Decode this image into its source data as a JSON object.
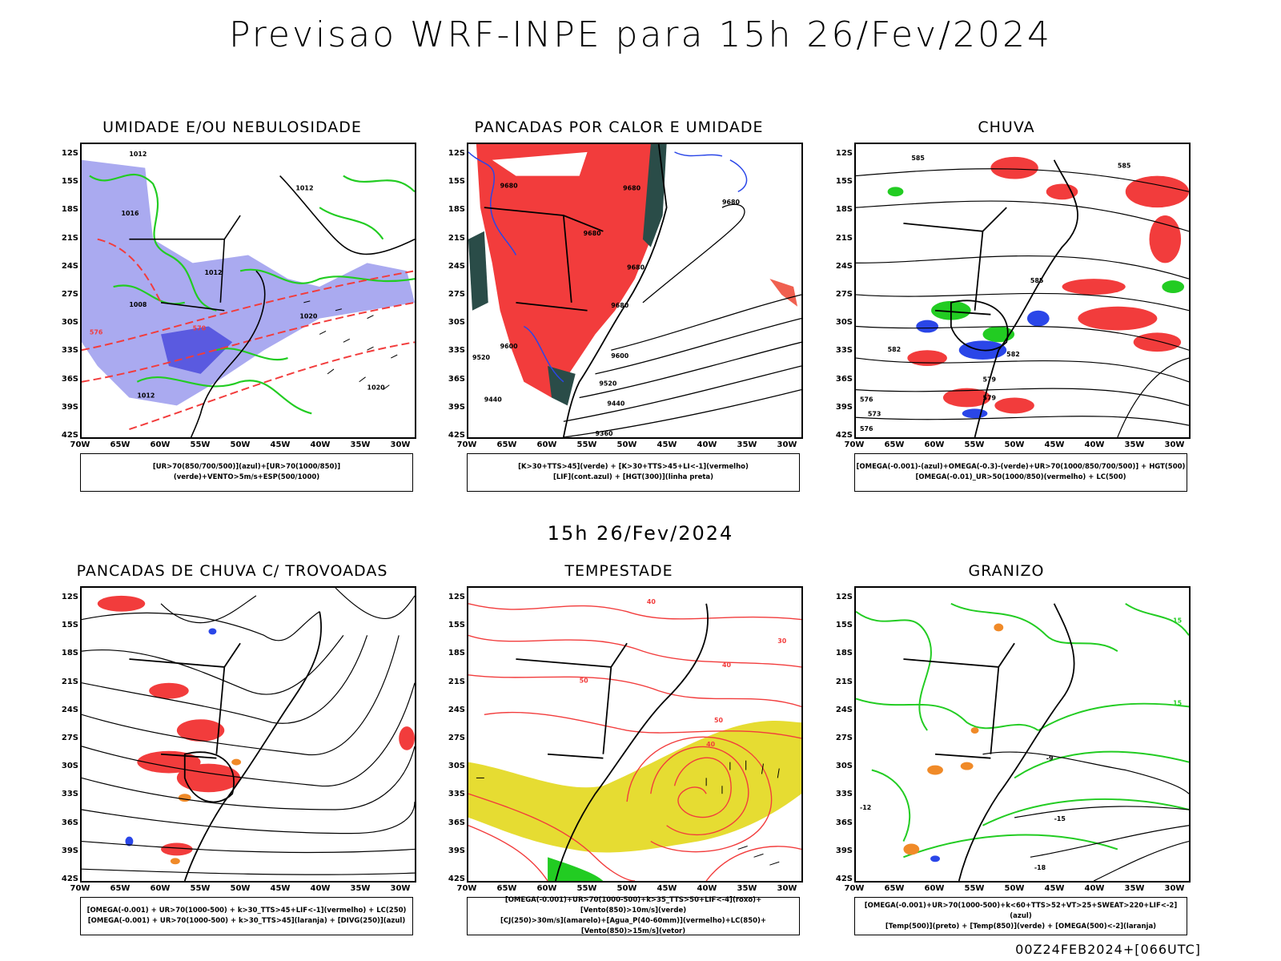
{
  "main_title": "Previsao WRF-INPE  para 15h 26/Fev/2024",
  "mid_title": "15h 26/Fev/2024",
  "footer": "00Z24FEB2024+[066UTC]",
  "lat_labels": [
    "12S",
    "15S",
    "18S",
    "21S",
    "24S",
    "27S",
    "30S",
    "33S",
    "36S",
    "39S",
    "42S"
  ],
  "lon_labels": [
    "70W",
    "65W",
    "60W",
    "55W",
    "50W",
    "45W",
    "40W",
    "35W",
    "30W"
  ],
  "colors": {
    "red": "#f23c3c",
    "green": "#22cc22",
    "blue": "#2a46e8",
    "lavender": "#aaaaf0",
    "yellow": "#e6dc32",
    "orange": "#f08a28",
    "dark_teal": "#2a4c48",
    "salmon": "#f06050"
  },
  "panels": [
    {
      "title": "UMIDADE E/OU NEBULOSIDADE",
      "legend": [
        "[UR>70(850/700/500)](azul)+[UR>70(1000/850)](verde)+VENTO>5m/s+ESP(500/1000)"
      ],
      "contour_labels": [
        "1012",
        "1012",
        "1012",
        "1016",
        "1008",
        "1020",
        "1020",
        "1012",
        "570",
        "576"
      ]
    },
    {
      "title": "PANCADAS POR CALOR E UMIDADE",
      "legend": [
        "[K>30+TTS>45](verde) + [K>30+TTS>45+LI<-1](vermelho)",
        "[LIF](cont.azul) + [HGT(300)](linha preta)"
      ],
      "contour_labels": [
        "9680",
        "9680",
        "9680",
        "9680",
        "9680",
        "9600",
        "9520",
        "9440",
        "9680",
        "9600",
        "9520",
        "9440",
        "9360"
      ]
    },
    {
      "title": "CHUVA",
      "legend": [
        "[OMEGA(-0.001)-(azul)+OMEGA(-0.3)-(verde)+UR>70(1000/850/700/500)] + HGT(500)",
        "[OMEGA(-0.01)_UR>50(1000/850)(vermelho) + LC(500)"
      ],
      "contour_labels": [
        "585",
        "585",
        "582",
        "579",
        "576",
        "573",
        "585",
        "582",
        "579",
        "576"
      ]
    },
    {
      "title": "PANCADAS DE CHUVA C/ TROVOADAS",
      "legend": [
        "[OMEGA(-0.001) + UR>70(1000-500) + k>30_TTS>45+LIF<-1](vermelho) + LC(250)",
        "[OMEGA(-0.001) + UR>70(1000-500) + k>30_TTS>45](laranja) + [DIVG(250)](azul)"
      ],
      "contour_labels": []
    },
    {
      "title": "TEMPESTADE",
      "legend": [
        "[OMEGA(-0.001)+UR>70(1000-500)+k>35_TTS>50+LIF<-4](roxo)+[Vento(850)>10m/s](verde)",
        "[CJ(250)>30m/s](amarelo)+[Agua_P(40-60mm)](vermelho)+LC(850)+[Vento(850)>15m/s](vetor)"
      ],
      "contour_labels": [
        "40",
        "50",
        "40",
        "30",
        "40",
        "50"
      ]
    },
    {
      "title": "GRANIZO",
      "legend": [
        "[OMEGA(-0.001)+UR>70(1000-500)+k<60+TTS>52+VT>25+SWEAT>220+LIF<-2](azul)",
        "[Temp(500)](preto) + [Temp(850)](verde) + [OMEGA(500)<-2](laranja)"
      ],
      "contour_labels": [
        "15",
        "15",
        "-9",
        "-12",
        "-15",
        "-18"
      ]
    }
  ]
}
